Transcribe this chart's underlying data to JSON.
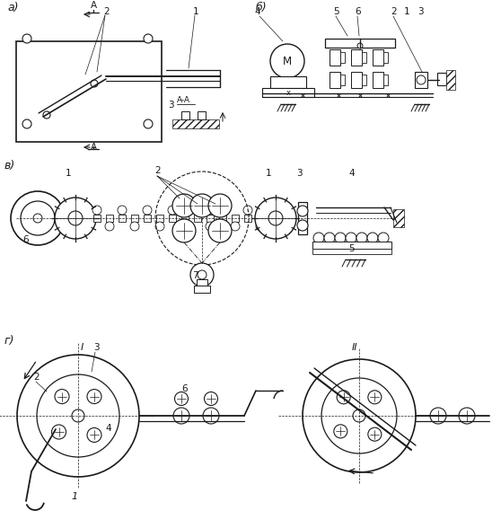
{
  "bg_color": "#ffffff",
  "line_color": "#1a1a1a",
  "figsize": [
    5.58,
    5.88
  ],
  "dpi": 100,
  "sections": {
    "a_label": "а)",
    "b_label": "б)",
    "v_label": "в)",
    "g_label": "г)"
  }
}
